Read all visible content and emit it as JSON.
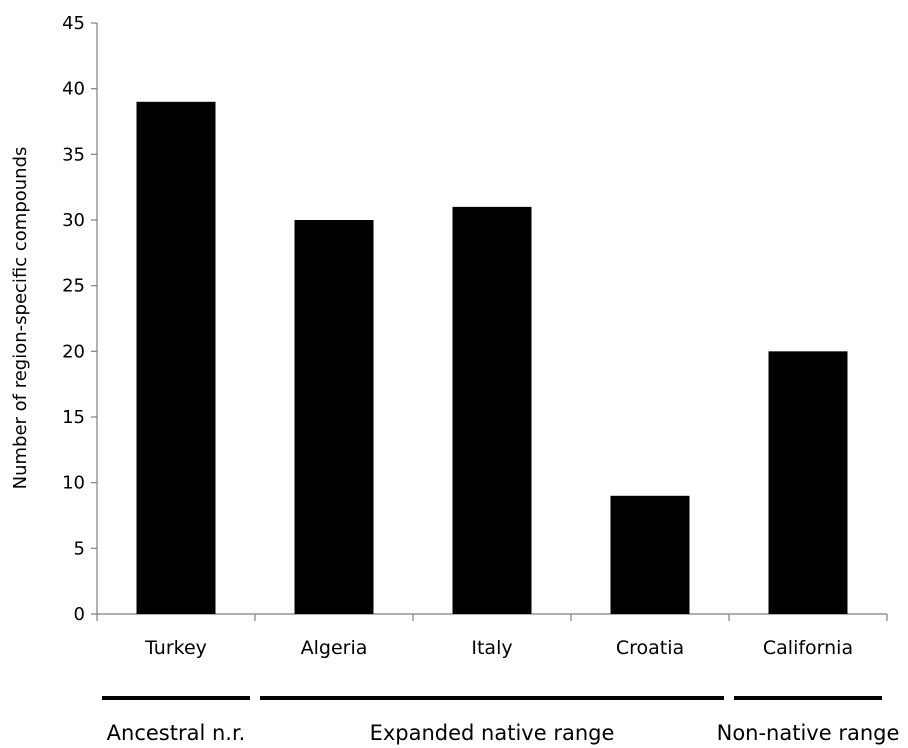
{
  "chart_data": {
    "type": "bar",
    "title": "",
    "xlabel": "",
    "ylabel": "Number of region-specific compounds",
    "categories": [
      "Turkey",
      "Algeria",
      "Italy",
      "Croatia",
      "California"
    ],
    "values": [
      39,
      30,
      31,
      9,
      20
    ],
    "ylim": [
      0,
      45
    ],
    "yticks": [
      0,
      5,
      10,
      15,
      20,
      25,
      30,
      35,
      40,
      45
    ],
    "grid": false,
    "bar_color": "#000000",
    "groups": [
      {
        "label": "Ancestral n.r.",
        "categories": [
          "Turkey"
        ]
      },
      {
        "label": "Expanded native range",
        "categories": [
          "Algeria",
          "Italy",
          "Croatia"
        ]
      },
      {
        "label": "Non-native range",
        "categories": [
          "California"
        ]
      }
    ]
  }
}
